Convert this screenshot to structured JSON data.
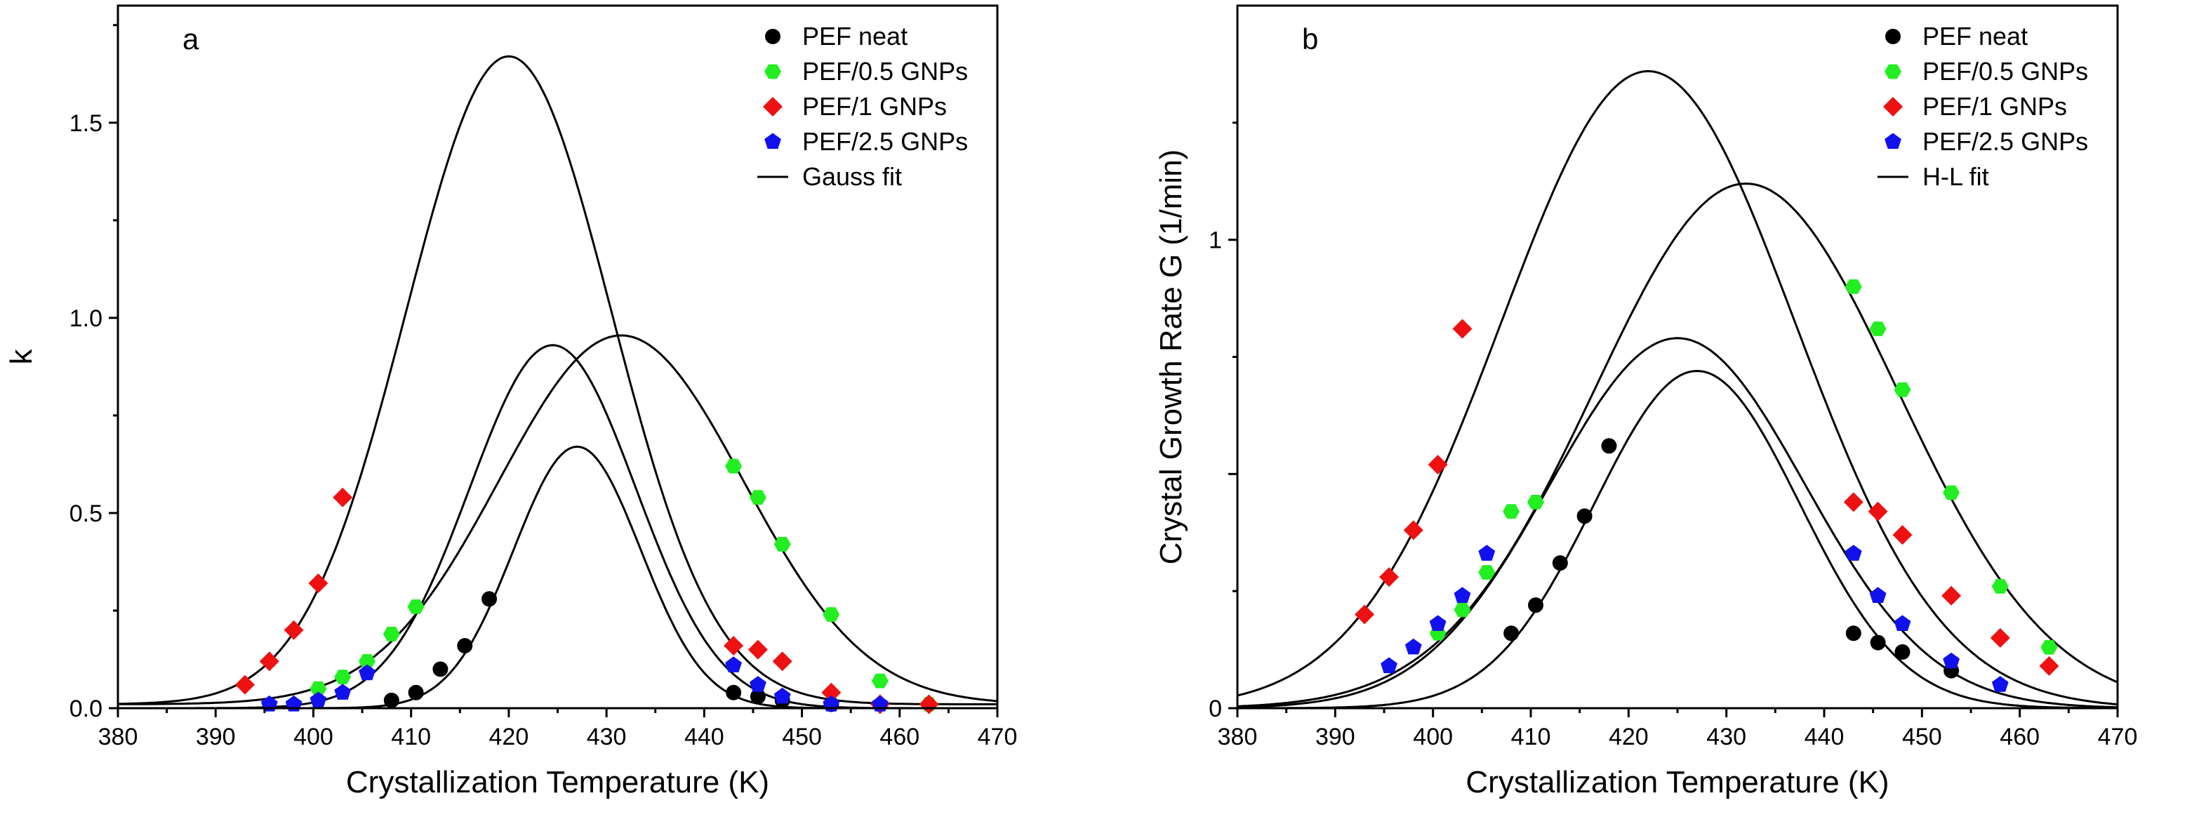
{
  "chart_data": [
    {
      "type": "scatter",
      "panel_label": "a",
      "xlabel": "Crystallization Temperature (K)",
      "ylabel": "k",
      "xlim": [
        380,
        470
      ],
      "ylim": [
        0,
        1.8
      ],
      "xticks": [
        380,
        390,
        400,
        410,
        420,
        430,
        440,
        450,
        460,
        470
      ],
      "yticks": [
        0.0,
        0.5,
        1.0,
        1.5
      ],
      "ytick_labels": [
        "0.0",
        "0.5",
        "1.0",
        "1.5"
      ],
      "legend_position": "top-right",
      "fit": {
        "label": "Gauss fit",
        "model": "gauss"
      },
      "series": [
        {
          "name": "PEF neat",
          "marker": "circle",
          "color": "#000000",
          "x": [
            408,
            410.5,
            413,
            415.5,
            418,
            443,
            445.5,
            448,
            453
          ],
          "y": [
            0.02,
            0.04,
            0.1,
            0.16,
            0.28,
            0.04,
            0.03,
            0.02,
            0.01
          ],
          "fit": {
            "amplitude": 0.67,
            "center": 427,
            "sigma": 6.5,
            "baseline": 0
          }
        },
        {
          "name": "PEF/0.5 GNPs",
          "marker": "hexagon",
          "color": "#22ee22",
          "x": [
            400.5,
            403,
            405.5,
            408,
            410.5,
            443,
            445.5,
            448,
            453,
            458,
            463
          ],
          "y": [
            0.05,
            0.08,
            0.12,
            0.19,
            0.26,
            0.62,
            0.54,
            0.42,
            0.24,
            0.07,
            0.01
          ],
          "fit": {
            "amplitude": 0.945,
            "center": 431.5,
            "sigma": 12.5,
            "baseline": 0.01
          }
        },
        {
          "name": "PEF/1 GNPs",
          "marker": "diamond",
          "color": "#ee1111",
          "x": [
            393,
            395.5,
            398,
            400.5,
            403,
            443,
            445.5,
            448,
            453,
            458,
            463
          ],
          "y": [
            0.06,
            0.12,
            0.2,
            0.32,
            0.54,
            0.16,
            0.15,
            0.12,
            0.04,
            0.01,
            0.01
          ],
          "fit": {
            "amplitude": 1.66,
            "center": 420,
            "sigma": 10.5,
            "baseline": 0.01
          }
        },
        {
          "name": "PEF/2.5 GNPs",
          "marker": "pentagon",
          "color": "#1111ee",
          "x": [
            395.5,
            398,
            400.5,
            403,
            405.5,
            443,
            445.5,
            448,
            453,
            458
          ],
          "y": [
            0.01,
            0.01,
            0.02,
            0.04,
            0.09,
            0.11,
            0.06,
            0.03,
            0.01,
            0.01
          ],
          "fit": {
            "amplitude": 0.93,
            "center": 424.5,
            "sigma": 8.5,
            "baseline": 0
          }
        }
      ]
    },
    {
      "type": "scatter",
      "panel_label": "b",
      "xlabel": "Crystallization Temperature (K)",
      "ylabel": "Crystal Growth Rate G (1/min)",
      "xlim": [
        380,
        470
      ],
      "ylim": [
        0,
        1.5
      ],
      "xticks": [
        380,
        390,
        400,
        410,
        420,
        430,
        440,
        450,
        460,
        470
      ],
      "yticks": [
        0,
        0.5,
        1
      ],
      "ytick_labels": [
        "0",
        "",
        "1"
      ],
      "legend_position": "top-right",
      "fit": {
        "label": "H-L fit",
        "model": "gauss"
      },
      "series": [
        {
          "name": "PEF neat",
          "marker": "circle",
          "color": "#000000",
          "x": [
            408,
            410.5,
            413,
            415.5,
            418,
            443,
            445.5,
            448,
            453
          ],
          "y": [
            0.16,
            0.22,
            0.31,
            0.41,
            0.56,
            0.16,
            0.14,
            0.12,
            0.08
          ],
          "fit": {
            "amplitude": 0.72,
            "center": 427,
            "sigma": 10.5,
            "baseline": 0
          }
        },
        {
          "name": "PEF/0.5 GNPs",
          "marker": "hexagon",
          "color": "#22ee22",
          "x": [
            400.5,
            403,
            405.5,
            408,
            410.5,
            443,
            445.5,
            448,
            453,
            458,
            463
          ],
          "y": [
            0.16,
            0.21,
            0.29,
            0.42,
            0.44,
            0.9,
            0.81,
            0.68,
            0.46,
            0.26,
            0.13
          ],
          "fit": {
            "amplitude": 1.12,
            "center": 432,
            "sigma": 15.5,
            "baseline": 0
          }
        },
        {
          "name": "PEF/1 GNPs",
          "marker": "diamond",
          "color": "#ee1111",
          "x": [
            393,
            395.5,
            398,
            400.5,
            403,
            443,
            445.5,
            448,
            453,
            458,
            463
          ],
          "y": [
            0.2,
            0.28,
            0.38,
            0.52,
            0.81,
            0.44,
            0.42,
            0.37,
            0.24,
            0.15,
            0.09
          ],
          "fit": {
            "amplitude": 1.36,
            "center": 422,
            "sigma": 15,
            "baseline": 0
          }
        },
        {
          "name": "PEF/2.5 GNPs",
          "marker": "pentagon",
          "color": "#1111ee",
          "x": [
            395.5,
            398,
            400.5,
            403,
            405.5,
            443,
            445.5,
            448,
            453,
            458
          ],
          "y": [
            0.09,
            0.13,
            0.18,
            0.24,
            0.33,
            0.33,
            0.24,
            0.18,
            0.1,
            0.05
          ],
          "fit": {
            "amplitude": 0.79,
            "center": 425,
            "sigma": 13,
            "baseline": 0
          }
        }
      ]
    }
  ]
}
